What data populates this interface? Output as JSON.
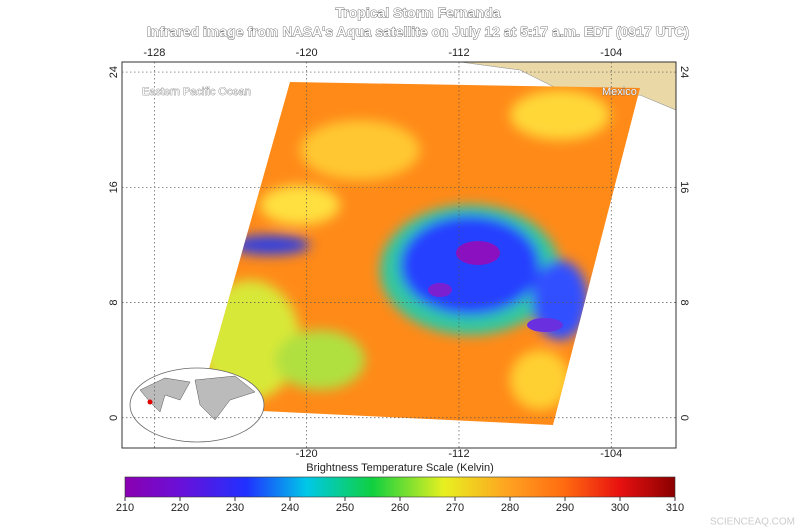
{
  "title": "Tropical Storm Fernanda",
  "subtitle": "Infrared image from NASA's Aqua satellite on July 12 at 5:17 a.m. EDT (0917 UTC)",
  "map": {
    "lonlim": [
      -129.7,
      -100.6
    ],
    "latlim": [
      -2.1,
      24.7
    ],
    "lon_ticks_top": [
      -128,
      -120,
      -112,
      -104
    ],
    "lon_ticks_bottom": [
      -120,
      -112,
      -104
    ],
    "lat_ticks": [
      24,
      16,
      8,
      0
    ],
    "labels": [
      "Eastern Pacific Ocean",
      "Mexico"
    ]
  },
  "colorbar": {
    "title": "Brightness Temperature Scale (Kelvin)",
    "lim": [
      210,
      310
    ],
    "ticks": [
      210,
      220,
      230,
      240,
      250,
      260,
      270,
      280,
      290,
      300,
      310
    ]
  },
  "watermark": "SCIENCEAQ.COM"
}
